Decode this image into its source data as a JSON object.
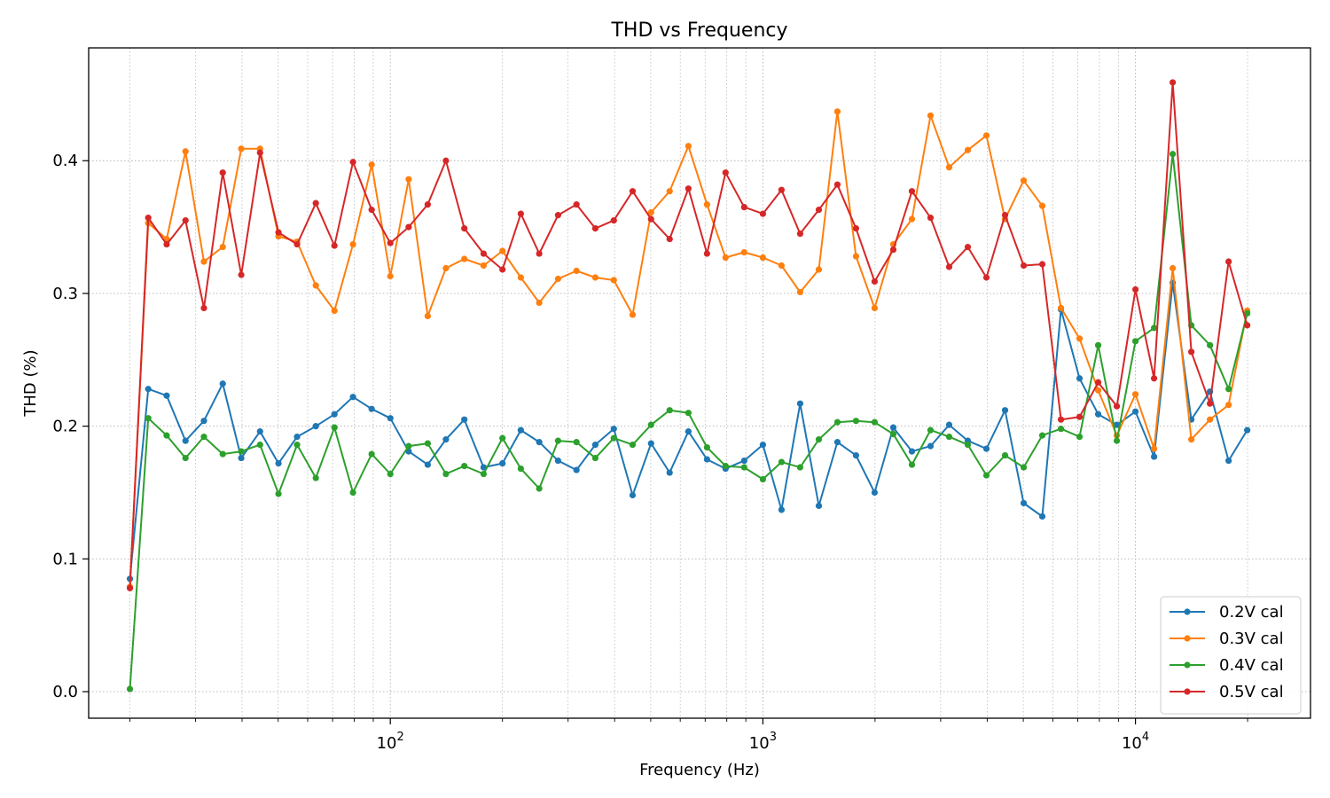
{
  "chart_data": {
    "type": "line",
    "title": "THD vs Frequency",
    "xlabel": "Frequency (Hz)",
    "ylabel": "THD (%)",
    "xscale": "log",
    "xlim": [
      15.5,
      29500
    ],
    "ylim": [
      -0.02,
      0.485
    ],
    "yticks": [
      "0.0",
      "0.1",
      "0.2",
      "0.3",
      "0.4"
    ],
    "ytick_values": [
      0.0,
      0.1,
      0.2,
      0.3,
      0.4
    ],
    "xticks": [
      {
        "base": "10",
        "exp": "2",
        "value": 100
      },
      {
        "base": "10",
        "exp": "3",
        "value": 1000
      },
      {
        "base": "10",
        "exp": "4",
        "value": 10000
      }
    ],
    "grid": true,
    "legend_position": "lower-right",
    "x": [
      20,
      22.4,
      25.1,
      28.2,
      31.6,
      35.5,
      39.8,
      44.7,
      50.1,
      56.2,
      63.1,
      70.8,
      79.4,
      89.1,
      100,
      112,
      126,
      141,
      158,
      178,
      200,
      224,
      251,
      282,
      316,
      355,
      398,
      447,
      501,
      562,
      631,
      708,
      794,
      891,
      1000,
      1122,
      1259,
      1413,
      1585,
      1778,
      1995,
      2239,
      2512,
      2818,
      3162,
      3548,
      3981,
      4467,
      5012,
      5623,
      6310,
      7079,
      7943,
      8913,
      10000,
      11220,
      12589,
      14125,
      15849,
      17783,
      19953
    ],
    "series": [
      {
        "name": "0.2V cal",
        "color": "#1f77b4",
        "values": [
          0.085,
          0.228,
          0.223,
          0.189,
          0.204,
          0.232,
          0.176,
          0.196,
          0.172,
          0.192,
          0.2,
          0.209,
          0.222,
          0.213,
          0.206,
          0.181,
          0.171,
          0.19,
          0.205,
          0.169,
          0.172,
          0.197,
          0.188,
          0.174,
          0.167,
          0.186,
          0.198,
          0.148,
          0.187,
          0.165,
          0.196,
          0.175,
          0.168,
          0.174,
          0.186,
          0.137,
          0.217,
          0.14,
          0.188,
          0.178,
          0.15,
          0.199,
          0.181,
          0.185,
          0.201,
          0.189,
          0.183,
          0.212,
          0.142,
          0.132,
          0.288,
          0.236,
          0.209,
          0.201,
          0.211,
          0.177,
          0.308,
          0.205,
          0.226,
          0.174,
          0.197
        ]
      },
      {
        "name": "0.3V cal",
        "color": "#ff7f0e",
        "values": [
          0.079,
          0.353,
          0.341,
          0.407,
          0.324,
          0.335,
          0.409,
          0.409,
          0.343,
          0.339,
          0.306,
          0.287,
          0.337,
          0.397,
          0.313,
          0.386,
          0.283,
          0.319,
          0.326,
          0.321,
          0.332,
          0.312,
          0.293,
          0.311,
          0.317,
          0.312,
          0.31,
          0.284,
          0.361,
          0.377,
          0.411,
          0.367,
          0.327,
          0.331,
          0.327,
          0.321,
          0.301,
          0.318,
          0.437,
          0.328,
          0.289,
          0.337,
          0.356,
          0.434,
          0.395,
          0.408,
          0.419,
          0.356,
          0.385,
          0.366,
          0.289,
          0.266,
          0.227,
          0.193,
          0.224,
          0.183,
          0.319,
          0.19,
          0.205,
          0.216,
          0.287
        ]
      },
      {
        "name": "0.4V cal",
        "color": "#2ca02c",
        "values": [
          0.002,
          0.206,
          0.193,
          0.176,
          0.192,
          0.179,
          0.181,
          0.186,
          0.149,
          0.186,
          0.161,
          0.199,
          0.15,
          0.179,
          0.164,
          0.185,
          0.187,
          0.164,
          0.17,
          0.164,
          0.191,
          0.168,
          0.153,
          0.189,
          0.188,
          0.176,
          0.191,
          0.186,
          0.201,
          0.212,
          0.21,
          0.184,
          0.17,
          0.169,
          0.16,
          0.173,
          0.169,
          0.19,
          0.203,
          0.204,
          0.203,
          0.194,
          0.171,
          0.197,
          0.192,
          0.186,
          0.163,
          0.178,
          0.169,
          0.193,
          0.198,
          0.192,
          0.261,
          0.189,
          0.264,
          0.274,
          0.405,
          0.276,
          0.261,
          0.228,
          0.285
        ]
      },
      {
        "name": "0.5V cal",
        "color": "#d62728",
        "values": [
          0.078,
          0.357,
          0.337,
          0.355,
          0.289,
          0.391,
          0.314,
          0.406,
          0.346,
          0.337,
          0.368,
          0.336,
          0.399,
          0.363,
          0.338,
          0.35,
          0.367,
          0.4,
          0.349,
          0.33,
          0.318,
          0.36,
          0.33,
          0.359,
          0.367,
          0.349,
          0.355,
          0.377,
          0.356,
          0.341,
          0.379,
          0.33,
          0.391,
          0.365,
          0.36,
          0.378,
          0.345,
          0.363,
          0.382,
          0.349,
          0.309,
          0.333,
          0.377,
          0.357,
          0.32,
          0.335,
          0.312,
          0.359,
          0.321,
          0.322,
          0.205,
          0.207,
          0.233,
          0.215,
          0.303,
          0.236,
          0.459,
          0.256,
          0.217,
          0.324,
          0.276
        ]
      }
    ]
  }
}
